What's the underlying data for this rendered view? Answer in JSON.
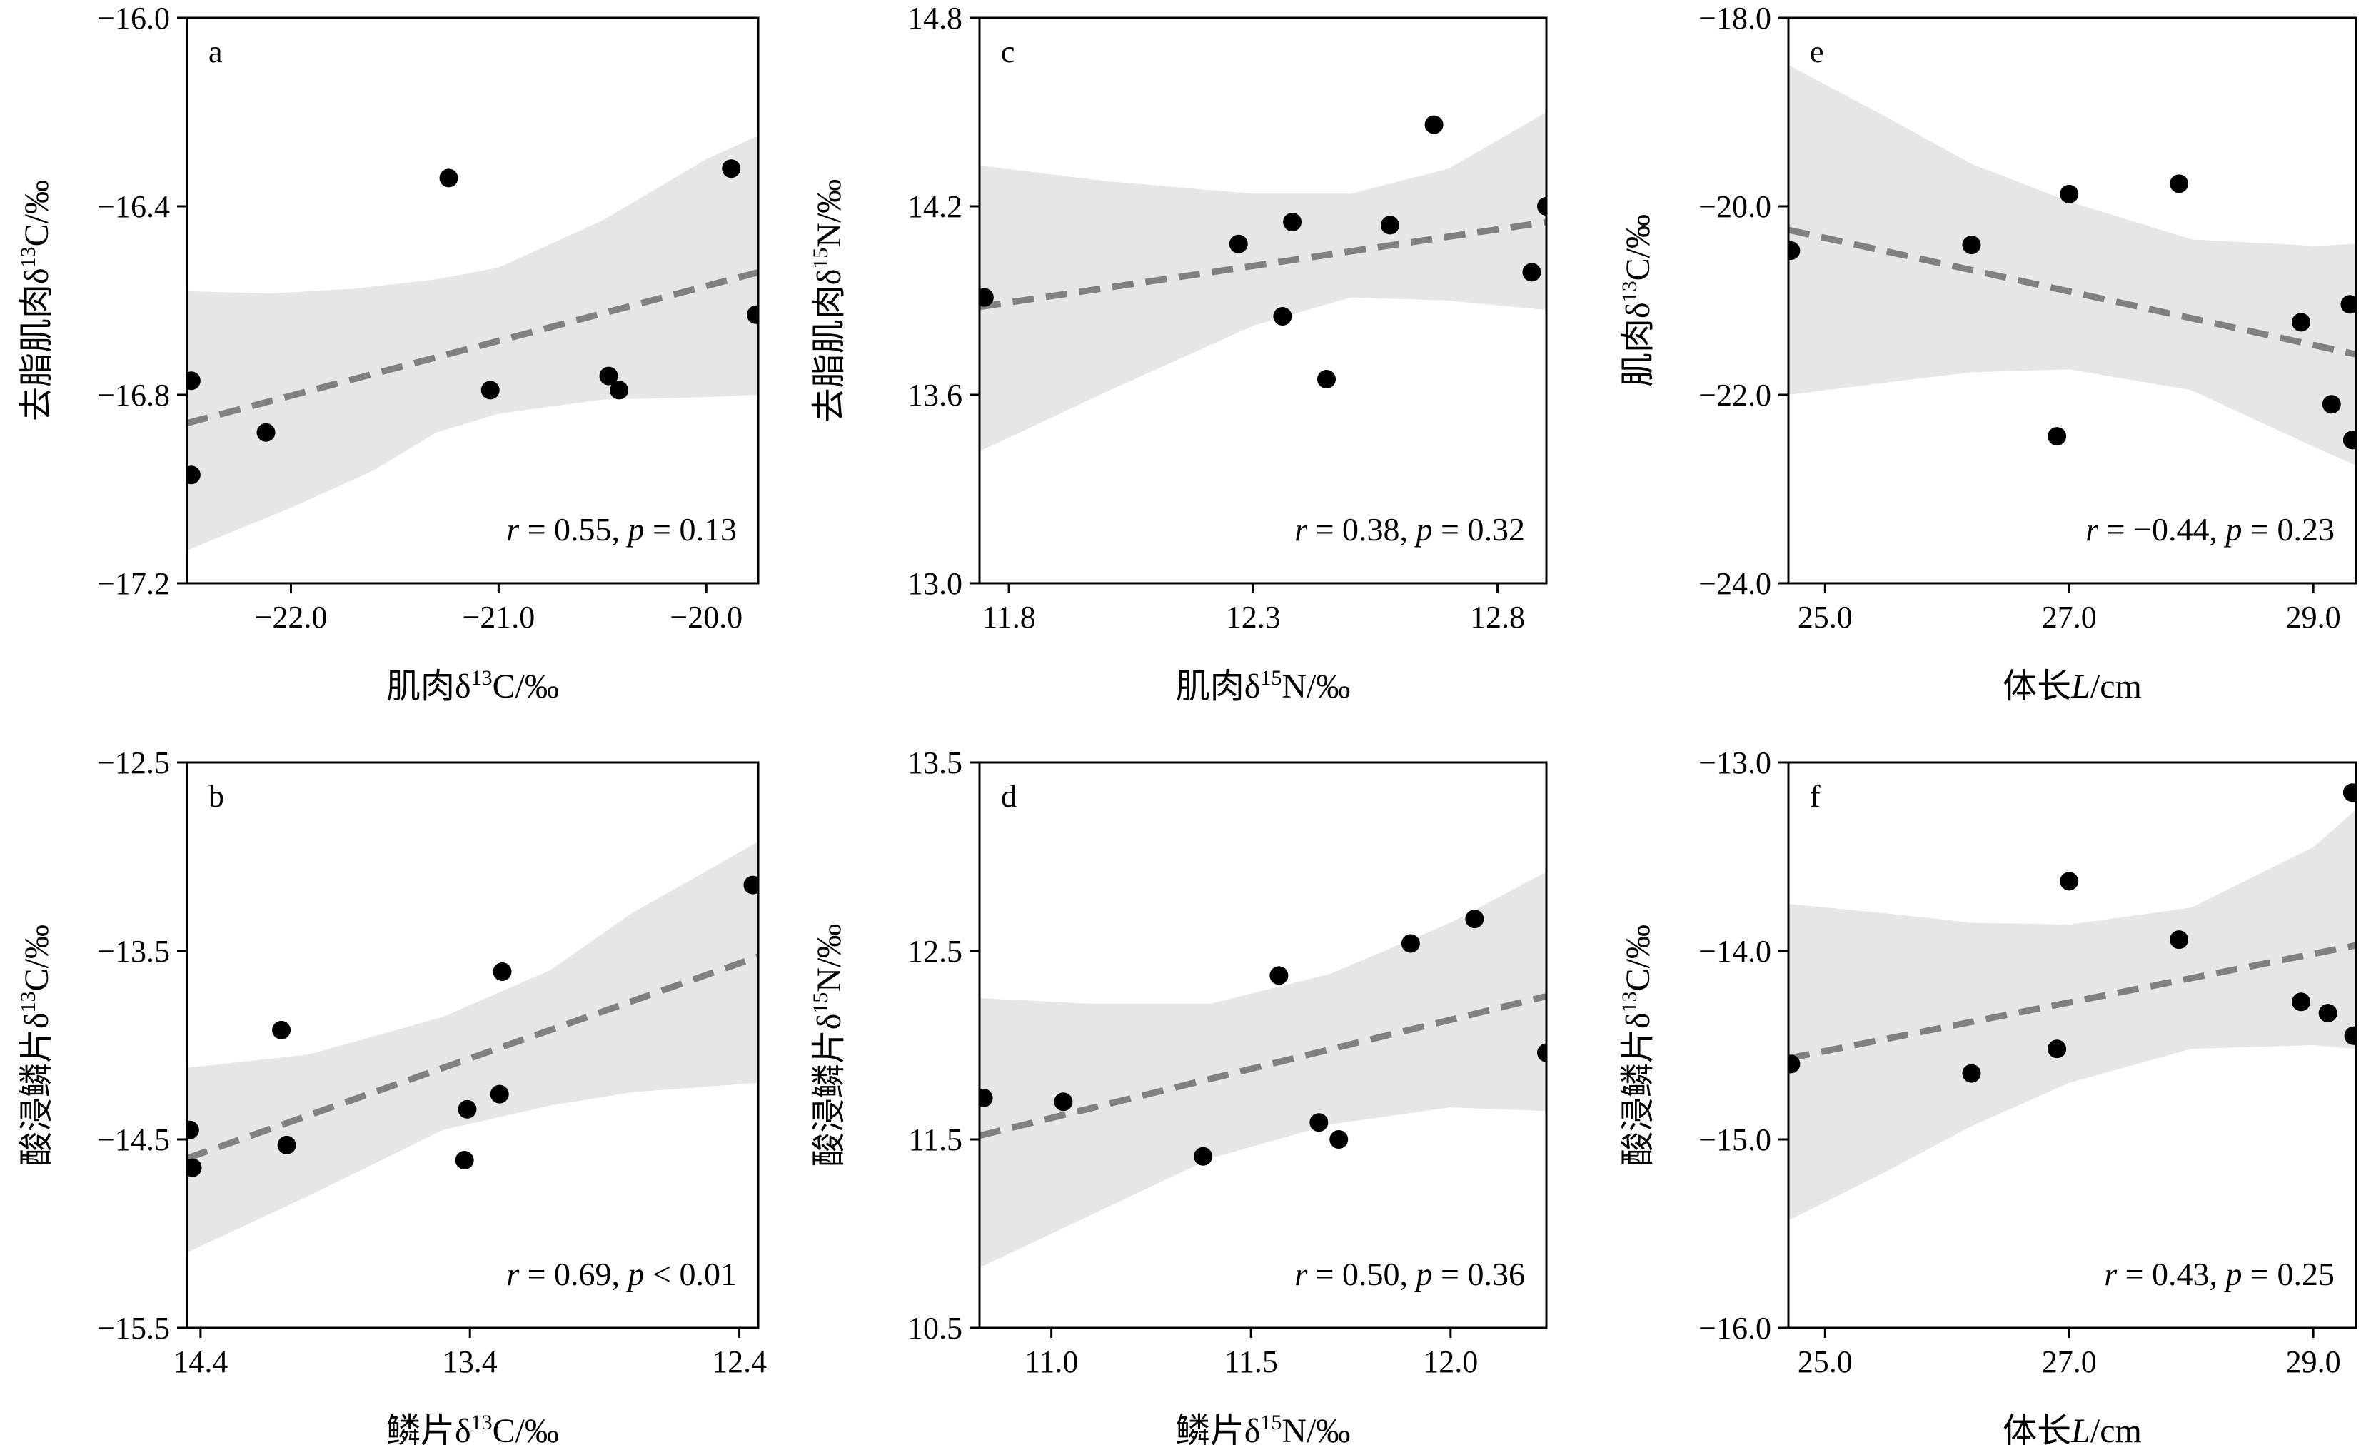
{
  "chart_data": [
    {
      "id": "a",
      "type": "scatter",
      "letter": "a",
      "xlabel": "肌肉δ13C/‰",
      "ylabel": "去脂肌肉δ13C/‰",
      "x_title": {
        "pre": "肌肉δ",
        "sup": "13",
        "post": "C/‰"
      },
      "y_title": {
        "pre": "去脂肌肉δ",
        "sup": "13",
        "post": "C/‰"
      },
      "xlim": [
        -22.5,
        -19.75
      ],
      "ylim": [
        -17.2,
        -16.0
      ],
      "x_reversed": false,
      "xticks": [
        -22.0,
        -21.0,
        -20.0
      ],
      "xtick_labels": [
        "−22.0",
        "−21.0",
        "−20.0"
      ],
      "yticks": [
        -17.2,
        -16.8,
        -16.4,
        -16.0
      ],
      "ytick_labels": [
        "−17.2",
        "−16.8",
        "−16.4",
        "−16.0"
      ],
      "points": [
        [
          -22.48,
          -16.77
        ],
        [
          -22.48,
          -16.97
        ],
        [
          -22.12,
          -16.88
        ],
        [
          -21.24,
          -16.34
        ],
        [
          -21.04,
          -16.79
        ],
        [
          -20.47,
          -16.76
        ],
        [
          -20.42,
          -16.79
        ],
        [
          -19.88,
          -16.32
        ],
        [
          -19.76,
          -16.63
        ]
      ],
      "fit": [
        [
          -22.5,
          -16.86
        ],
        [
          -19.75,
          -16.54
        ]
      ],
      "band_upper": [
        [
          -22.5,
          -16.58
        ],
        [
          -22.1,
          -16.585
        ],
        [
          -21.7,
          -16.575
        ],
        [
          -21.3,
          -16.555
        ],
        [
          -21.0,
          -16.53
        ],
        [
          -20.5,
          -16.43
        ],
        [
          -20.0,
          -16.3
        ],
        [
          -19.75,
          -16.25
        ]
      ],
      "band_lower": [
        [
          -22.5,
          -17.13
        ],
        [
          -22.0,
          -17.04
        ],
        [
          -21.6,
          -16.96
        ],
        [
          -21.3,
          -16.88
        ],
        [
          -21.0,
          -16.84
        ],
        [
          -20.5,
          -16.81
        ],
        [
          -20.0,
          -16.805
        ],
        [
          -19.75,
          -16.8
        ]
      ],
      "stats": {
        "r_label": "r",
        "r_value": " = 0.55, ",
        "p_label": "p",
        "p_value": " = 0.13"
      }
    },
    {
      "id": "c",
      "type": "scatter",
      "letter": "c",
      "xlabel": "肌肉δ15N/‰",
      "ylabel": "去脂肌肉δ15N/‰",
      "x_title": {
        "pre": "肌肉δ",
        "sup": "15",
        "post": "N/‰"
      },
      "y_title": {
        "pre": "去脂肌肉δ",
        "sup": "15",
        "post": "N/‰"
      },
      "xlim": [
        11.74,
        12.9
      ],
      "ylim": [
        13.0,
        14.8
      ],
      "x_reversed": false,
      "xticks": [
        11.8,
        12.3,
        12.8
      ],
      "xtick_labels": [
        "11.8",
        "12.3",
        "12.8"
      ],
      "yticks": [
        13.0,
        13.6,
        14.2,
        14.8
      ],
      "ytick_labels": [
        "13.0",
        "13.6",
        "14.2",
        "14.8"
      ],
      "points": [
        [
          11.75,
          13.91
        ],
        [
          12.27,
          14.08
        ],
        [
          12.36,
          13.85
        ],
        [
          12.38,
          14.15
        ],
        [
          12.45,
          13.65
        ],
        [
          12.58,
          14.14
        ],
        [
          12.67,
          14.46
        ],
        [
          12.87,
          13.99
        ],
        [
          12.9,
          14.2
        ]
      ],
      "fit": [
        [
          11.74,
          13.88
        ],
        [
          12.9,
          14.15
        ]
      ],
      "band_upper": [
        [
          11.74,
          14.33
        ],
        [
          12.0,
          14.28
        ],
        [
          12.3,
          14.24
        ],
        [
          12.5,
          14.24
        ],
        [
          12.7,
          14.32
        ],
        [
          12.9,
          14.5
        ]
      ],
      "band_lower": [
        [
          11.74,
          13.42
        ],
        [
          12.0,
          13.61
        ],
        [
          12.3,
          13.82
        ],
        [
          12.5,
          13.91
        ],
        [
          12.7,
          13.9
        ],
        [
          12.9,
          13.87
        ]
      ],
      "stats": {
        "r_label": "r",
        "r_value": " = 0.38, ",
        "p_label": "p",
        "p_value": " = 0.32"
      }
    },
    {
      "id": "e",
      "type": "scatter",
      "letter": "e",
      "xlabel": "体长L/cm",
      "ylabel": "肌肉δ13C/‰",
      "x_title": {
        "pre": "体长",
        "ital": "L",
        "post": "/cm"
      },
      "y_title": {
        "pre": "肌肉δ",
        "sup": "13",
        "post": "C/‰"
      },
      "xlim": [
        24.7,
        29.35
      ],
      "ylim": [
        -24.0,
        -18.0
      ],
      "x_reversed": false,
      "xticks": [
        25.0,
        27.0,
        29.0
      ],
      "xtick_labels": [
        "25.0",
        "27.0",
        "29.0"
      ],
      "yticks": [
        -24.0,
        -22.0,
        -20.0,
        -18.0
      ],
      "ytick_labels": [
        "−24.0",
        "−22.0",
        "−20.0",
        "−18.0"
      ],
      "points": [
        [
          24.72,
          -20.47
        ],
        [
          26.2,
          -20.41
        ],
        [
          26.9,
          -22.44
        ],
        [
          27.0,
          -19.87
        ],
        [
          27.9,
          -19.76
        ],
        [
          28.9,
          -21.23
        ],
        [
          29.15,
          -22.1
        ],
        [
          29.3,
          -21.04
        ],
        [
          29.32,
          -22.48
        ]
      ],
      "fit": [
        [
          24.7,
          -20.25
        ],
        [
          29.35,
          -21.57
        ]
      ],
      "band_upper": [
        [
          24.7,
          -18.5
        ],
        [
          25.5,
          -19.05
        ],
        [
          26.2,
          -19.55
        ],
        [
          27.0,
          -19.95
        ],
        [
          28.0,
          -20.35
        ],
        [
          29.0,
          -20.42
        ],
        [
          29.35,
          -20.4
        ]
      ],
      "band_lower": [
        [
          24.7,
          -22.0
        ],
        [
          25.5,
          -21.87
        ],
        [
          26.2,
          -21.76
        ],
        [
          27.0,
          -21.73
        ],
        [
          28.0,
          -21.95
        ],
        [
          29.0,
          -22.55
        ],
        [
          29.35,
          -22.75
        ]
      ],
      "stats": {
        "r_label": "r",
        "r_value": " = −0.44, ",
        "p_label": "p",
        "p_value": " = 0.23"
      }
    },
    {
      "id": "b",
      "type": "scatter",
      "letter": "b",
      "xlabel": "鳞片δ13C/‰",
      "ylabel": "酸浸鳞片δ13C/‰",
      "x_title": {
        "pre": "鳞片δ",
        "sup": "13",
        "post": "C/‰"
      },
      "y_title": {
        "pre": "酸浸鳞片δ",
        "sup": "13",
        "post": "C/‰"
      },
      "xlim": [
        14.45,
        12.33
      ],
      "ylim": [
        -15.5,
        -12.5
      ],
      "x_reversed": true,
      "xticks": [
        14.4,
        13.4,
        12.4
      ],
      "xtick_labels": [
        "14.4",
        "13.4",
        "12.4"
      ],
      "yticks": [
        -15.5,
        -14.5,
        -13.5,
        -12.5
      ],
      "ytick_labels": [
        "−15.5",
        "−14.5",
        "−13.5",
        "−12.5"
      ],
      "points": [
        [
          14.44,
          -14.45
        ],
        [
          14.43,
          -14.65
        ],
        [
          14.1,
          -13.92
        ],
        [
          14.08,
          -14.53
        ],
        [
          13.42,
          -14.61
        ],
        [
          13.41,
          -14.34
        ],
        [
          13.28,
          -13.61
        ],
        [
          13.29,
          -14.26
        ],
        [
          12.35,
          -13.15
        ]
      ],
      "fit": [
        [
          14.45,
          -14.6
        ],
        [
          12.33,
          -13.53
        ]
      ],
      "band_upper": [
        [
          14.45,
          -14.12
        ],
        [
          14.0,
          -14.05
        ],
        [
          13.5,
          -13.85
        ],
        [
          13.1,
          -13.6
        ],
        [
          12.8,
          -13.3
        ],
        [
          12.33,
          -12.92
        ]
      ],
      "band_lower": [
        [
          14.45,
          -15.1
        ],
        [
          14.0,
          -14.8
        ],
        [
          13.5,
          -14.45
        ],
        [
          13.1,
          -14.32
        ],
        [
          12.8,
          -14.25
        ],
        [
          12.33,
          -14.2
        ]
      ],
      "stats": {
        "r_label": "r",
        "r_value": " = 0.69, ",
        "p_label": "p",
        "p_value": " < 0.01"
      }
    },
    {
      "id": "d",
      "type": "scatter",
      "letter": "d",
      "xlabel": "鳞片δ15N/‰",
      "ylabel": "酸浸鳞片δ15N/‰",
      "x_title": {
        "pre": "鳞片δ",
        "sup": "15",
        "post": "N/‰"
      },
      "y_title": {
        "pre": "酸浸鳞片δ",
        "sup": "15",
        "post": "N/‰"
      },
      "xlim": [
        10.82,
        12.24
      ],
      "ylim": [
        10.5,
        13.5
      ],
      "x_reversed": false,
      "xticks": [
        11.0,
        11.5,
        12.0
      ],
      "xtick_labels": [
        "11.0",
        "11.5",
        "12.0"
      ],
      "yticks": [
        10.5,
        11.5,
        12.5,
        13.5
      ],
      "ytick_labels": [
        "10.5",
        "11.5",
        "12.5",
        "13.5"
      ],
      "points": [
        [
          10.83,
          11.72
        ],
        [
          11.03,
          11.7
        ],
        [
          11.38,
          11.41
        ],
        [
          11.57,
          12.37
        ],
        [
          11.67,
          11.59
        ],
        [
          11.72,
          11.5
        ],
        [
          11.9,
          12.54
        ],
        [
          12.06,
          12.67
        ],
        [
          12.24,
          11.96
        ]
      ],
      "fit": [
        [
          10.82,
          11.52
        ],
        [
          12.24,
          12.26
        ]
      ],
      "band_upper": [
        [
          10.82,
          12.25
        ],
        [
          11.1,
          12.22
        ],
        [
          11.4,
          12.22
        ],
        [
          11.7,
          12.38
        ],
        [
          12.0,
          12.65
        ],
        [
          12.24,
          12.92
        ]
      ],
      "band_lower": [
        [
          10.82,
          10.82
        ],
        [
          11.1,
          11.1
        ],
        [
          11.4,
          11.4
        ],
        [
          11.7,
          11.58
        ],
        [
          12.0,
          11.67
        ],
        [
          12.24,
          11.65
        ]
      ],
      "stats": {
        "r_label": "r",
        "r_value": " = 0.50, ",
        "p_label": "p",
        "p_value": " = 0.36"
      }
    },
    {
      "id": "f",
      "type": "scatter",
      "letter": "f",
      "xlabel": "体长L/cm",
      "ylabel": "酸浸鳞片δ13C/‰",
      "x_title": {
        "pre": "体长",
        "ital": "L",
        "post": "/cm"
      },
      "y_title": {
        "pre": "酸浸鳞片δ",
        "sup": "13",
        "post": "C/‰"
      },
      "xlim": [
        24.7,
        29.35
      ],
      "ylim": [
        -16.0,
        -13.0
      ],
      "x_reversed": false,
      "xticks": [
        25.0,
        27.0,
        29.0
      ],
      "xtick_labels": [
        "25.0",
        "27.0",
        "29.0"
      ],
      "yticks": [
        -16.0,
        -15.0,
        -14.0,
        -13.0
      ],
      "ytick_labels": [
        "−16.0",
        "−15.0",
        "−14.0",
        "−13.0"
      ],
      "points": [
        [
          24.72,
          -14.6
        ],
        [
          26.2,
          -14.65
        ],
        [
          26.9,
          -14.52
        ],
        [
          27.0,
          -13.63
        ],
        [
          27.9,
          -13.94
        ],
        [
          28.9,
          -14.27
        ],
        [
          29.12,
          -14.33
        ],
        [
          29.32,
          -13.16
        ],
        [
          29.33,
          -14.45
        ]
      ],
      "fit": [
        [
          24.7,
          -14.57
        ],
        [
          29.35,
          -13.97
        ]
      ],
      "band_upper": [
        [
          24.7,
          -13.75
        ],
        [
          25.5,
          -13.8
        ],
        [
          26.2,
          -13.85
        ],
        [
          27.0,
          -13.86
        ],
        [
          28.0,
          -13.77
        ],
        [
          29.0,
          -13.45
        ],
        [
          29.35,
          -13.25
        ]
      ],
      "band_lower": [
        [
          24.7,
          -15.43
        ],
        [
          25.5,
          -15.17
        ],
        [
          26.2,
          -14.93
        ],
        [
          27.0,
          -14.7
        ],
        [
          28.0,
          -14.52
        ],
        [
          29.0,
          -14.5
        ],
        [
          29.35,
          -14.52
        ]
      ],
      "stats": {
        "r_label": "r",
        "r_value": " = 0.43, ",
        "p_label": "p",
        "p_value": " = 0.25"
      }
    }
  ],
  "colors": {
    "band": "#e6e6e6",
    "fit": "#808080",
    "point": "#000000",
    "axis": "#000000"
  }
}
